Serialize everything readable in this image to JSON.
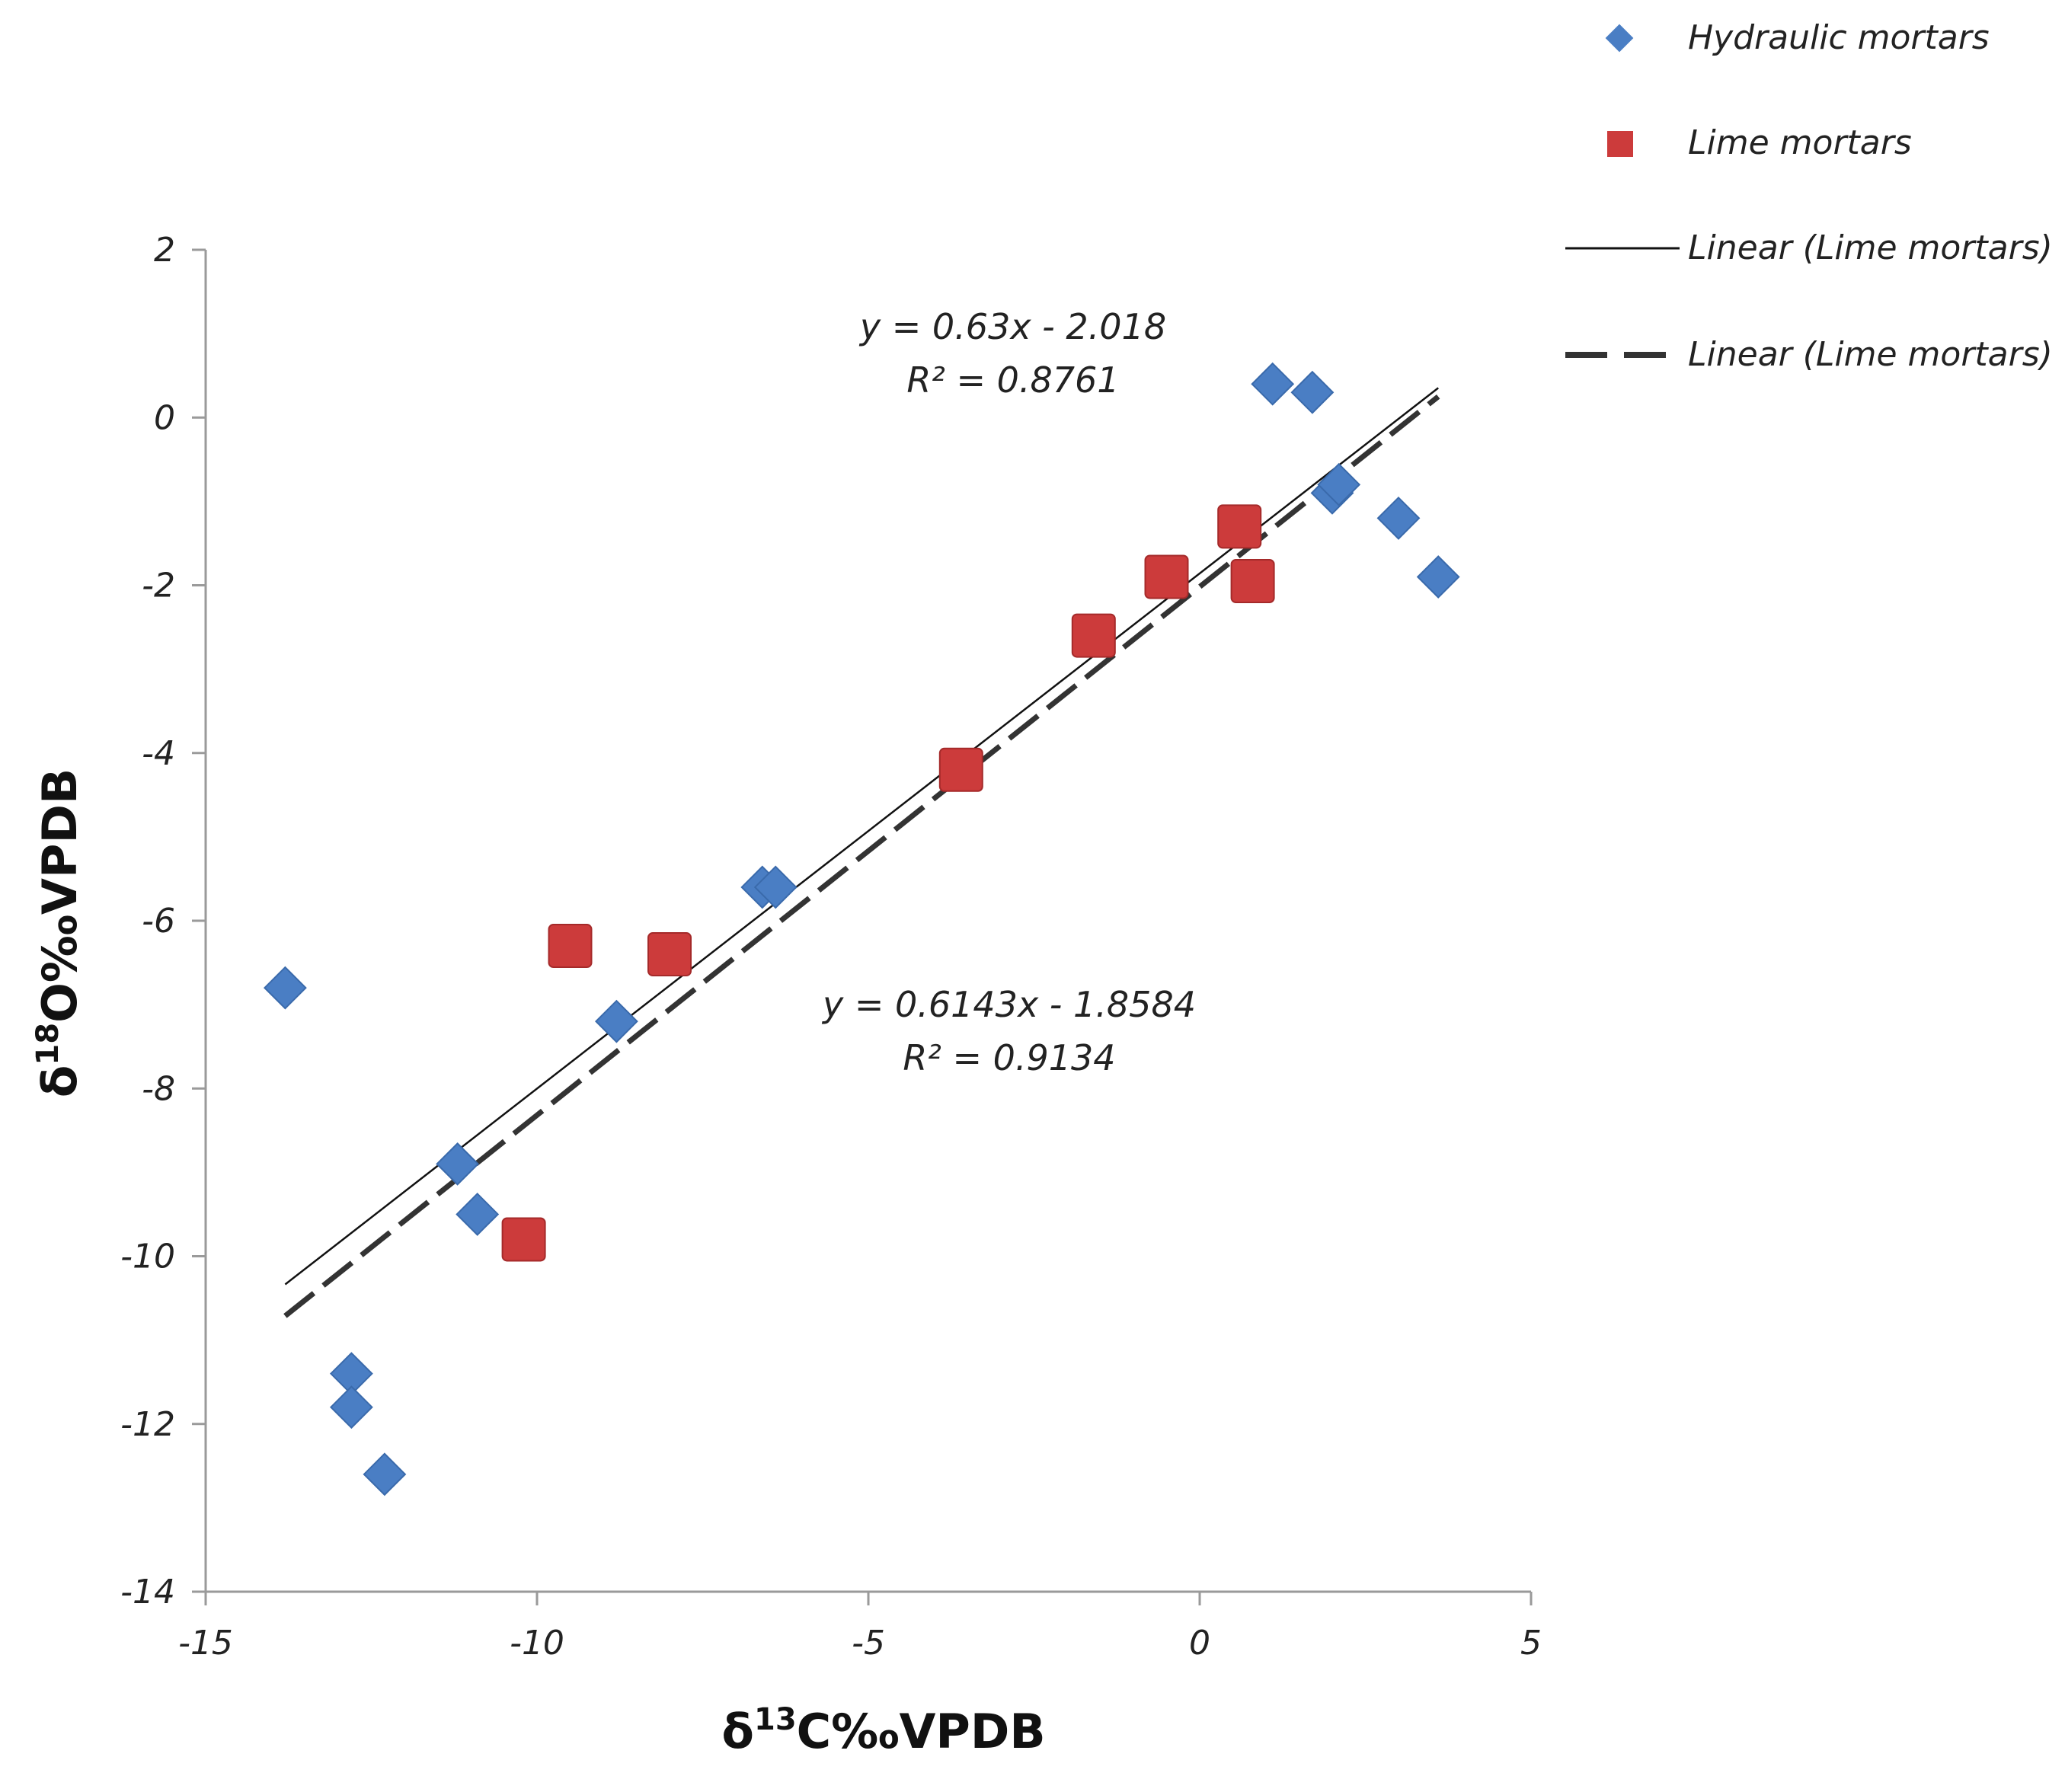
{
  "chart_data": {
    "type": "scatter",
    "xlabel": "δ13C‰VPDB",
    "ylabel": "δ18O‰VPDB",
    "xlim": [
      -15,
      5
    ],
    "ylim": [
      -14,
      2
    ],
    "x_ticks": [
      "-15",
      "-10",
      "-5",
      "0",
      "5"
    ],
    "y_ticks": [
      "2",
      "0",
      "-2",
      "-4",
      "-6",
      "-8",
      "-10",
      "-12",
      "-14"
    ],
    "series": [
      {
        "name": "Hydraulic mortars",
        "marker": "diamond",
        "color": "#4a7ec4",
        "points": [
          [
            -13.8,
            -6.8
          ],
          [
            -12.8,
            -11.4
          ],
          [
            -12.8,
            -11.8
          ],
          [
            -12.3,
            -12.6
          ],
          [
            -11.2,
            -8.9
          ],
          [
            -10.9,
            -9.5
          ],
          [
            -8.8,
            -7.2
          ],
          [
            -6.6,
            -5.6
          ],
          [
            -6.4,
            -5.6
          ],
          [
            1.1,
            0.4
          ],
          [
            1.7,
            0.3
          ],
          [
            2.0,
            -0.9
          ],
          [
            2.1,
            -0.8
          ],
          [
            3.0,
            -1.2
          ],
          [
            3.6,
            -1.9
          ]
        ]
      },
      {
        "name": "Lime mortars",
        "marker": "square",
        "color": "#cc3b3b",
        "points": [
          [
            -10.2,
            -9.8
          ],
          [
            -9.5,
            -6.3
          ],
          [
            -8.0,
            -6.4
          ],
          [
            -3.6,
            -4.2
          ],
          [
            -1.6,
            -2.6
          ],
          [
            -0.5,
            -1.9
          ],
          [
            0.6,
            -1.3
          ],
          [
            0.8,
            -1.95
          ]
        ]
      }
    ],
    "trendlines": [
      {
        "name": "Linear (Lime mortars)",
        "style": "solid",
        "slope": 0.6143,
        "intercept": -1.8584,
        "x_range": [
          -13.8,
          3.6
        ],
        "equation": "y = 0.6143x - 1.8584",
        "r2": "R² = 0.9134"
      },
      {
        "name": "Linear (Lime mortars)",
        "style": "dashed",
        "slope": 0.63,
        "intercept": -2.018,
        "x_range": [
          -13.8,
          3.6
        ],
        "equation": "y = 0.63x - 2.018",
        "r2": "R² = 0.8761"
      }
    ],
    "legend": {
      "position": "top-right",
      "entries": [
        "Hydraulic mortars",
        "Lime mortars",
        "Linear (Lime mortars)",
        "Linear (Lime mortars)"
      ]
    },
    "grid": false
  }
}
